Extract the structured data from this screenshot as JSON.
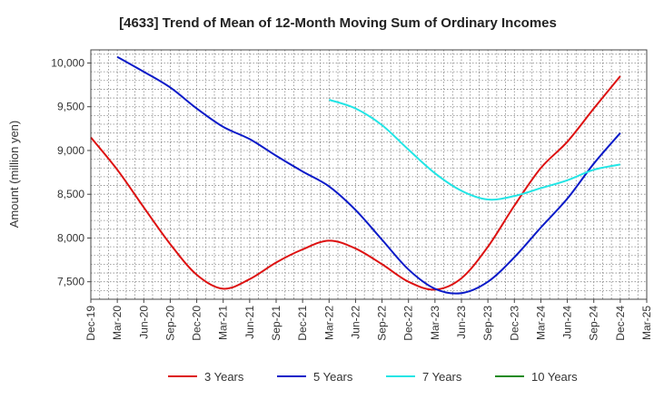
{
  "chart_data": {
    "type": "line",
    "title": "[4633]  Trend of Mean of 12-Month Moving Sum of Ordinary Incomes",
    "xlabel": "",
    "ylabel": "Amount (million yen)",
    "ylim": [
      7300,
      10150
    ],
    "y_ticks": [
      7500,
      8000,
      8500,
      9000,
      9500,
      10000
    ],
    "y_tick_labels": [
      "7,500",
      "8,000",
      "8,500",
      "9,000",
      "9,500",
      "10,000"
    ],
    "x_tick_labels": [
      "Dec-19",
      "Mar-20",
      "Jun-20",
      "Sep-20",
      "Dec-20",
      "Mar-21",
      "Jun-21",
      "Sep-21",
      "Dec-21",
      "Mar-22",
      "Jun-22",
      "Sep-22",
      "Dec-22",
      "Mar-23",
      "Jun-23",
      "Sep-23",
      "Dec-23",
      "Mar-24",
      "Jun-24",
      "Sep-24",
      "Dec-24",
      "Mar-25"
    ],
    "grid": true,
    "legend_position": "bottom",
    "series": [
      {
        "name": "3 Years",
        "color": "#dd1111",
        "points": [
          [
            0,
            9150
          ],
          [
            1,
            8780
          ],
          [
            2,
            8350
          ],
          [
            3,
            7930
          ],
          [
            4,
            7580
          ],
          [
            5,
            7420
          ],
          [
            6,
            7530
          ],
          [
            7,
            7720
          ],
          [
            8,
            7870
          ],
          [
            9,
            7970
          ],
          [
            10,
            7880
          ],
          [
            11,
            7700
          ],
          [
            12,
            7500
          ],
          [
            13,
            7410
          ],
          [
            14,
            7540
          ],
          [
            15,
            7900
          ],
          [
            16,
            8370
          ],
          [
            17,
            8800
          ],
          [
            18,
            9100
          ],
          [
            19,
            9480
          ],
          [
            20,
            9850
          ]
        ]
      },
      {
        "name": "5 Years",
        "color": "#0a1ac8",
        "points": [
          [
            1,
            10070
          ],
          [
            2,
            9900
          ],
          [
            3,
            9720
          ],
          [
            4,
            9480
          ],
          [
            5,
            9270
          ],
          [
            6,
            9130
          ],
          [
            7,
            8940
          ],
          [
            8,
            8760
          ],
          [
            9,
            8590
          ],
          [
            10,
            8320
          ],
          [
            11,
            7980
          ],
          [
            12,
            7640
          ],
          [
            13,
            7420
          ],
          [
            14,
            7370
          ],
          [
            15,
            7500
          ],
          [
            16,
            7780
          ],
          [
            17,
            8120
          ],
          [
            18,
            8450
          ],
          [
            19,
            8850
          ],
          [
            20,
            9200
          ]
        ]
      },
      {
        "name": "7 Years",
        "color": "#22e5e5",
        "points": [
          [
            9,
            9580
          ],
          [
            10,
            9480
          ],
          [
            11,
            9290
          ],
          [
            12,
            9010
          ],
          [
            13,
            8740
          ],
          [
            14,
            8540
          ],
          [
            15,
            8440
          ],
          [
            16,
            8480
          ],
          [
            17,
            8570
          ],
          [
            18,
            8660
          ],
          [
            19,
            8780
          ],
          [
            20,
            8840
          ]
        ]
      },
      {
        "name": "10 Years",
        "color": "#1b8a1b",
        "points": []
      }
    ]
  }
}
